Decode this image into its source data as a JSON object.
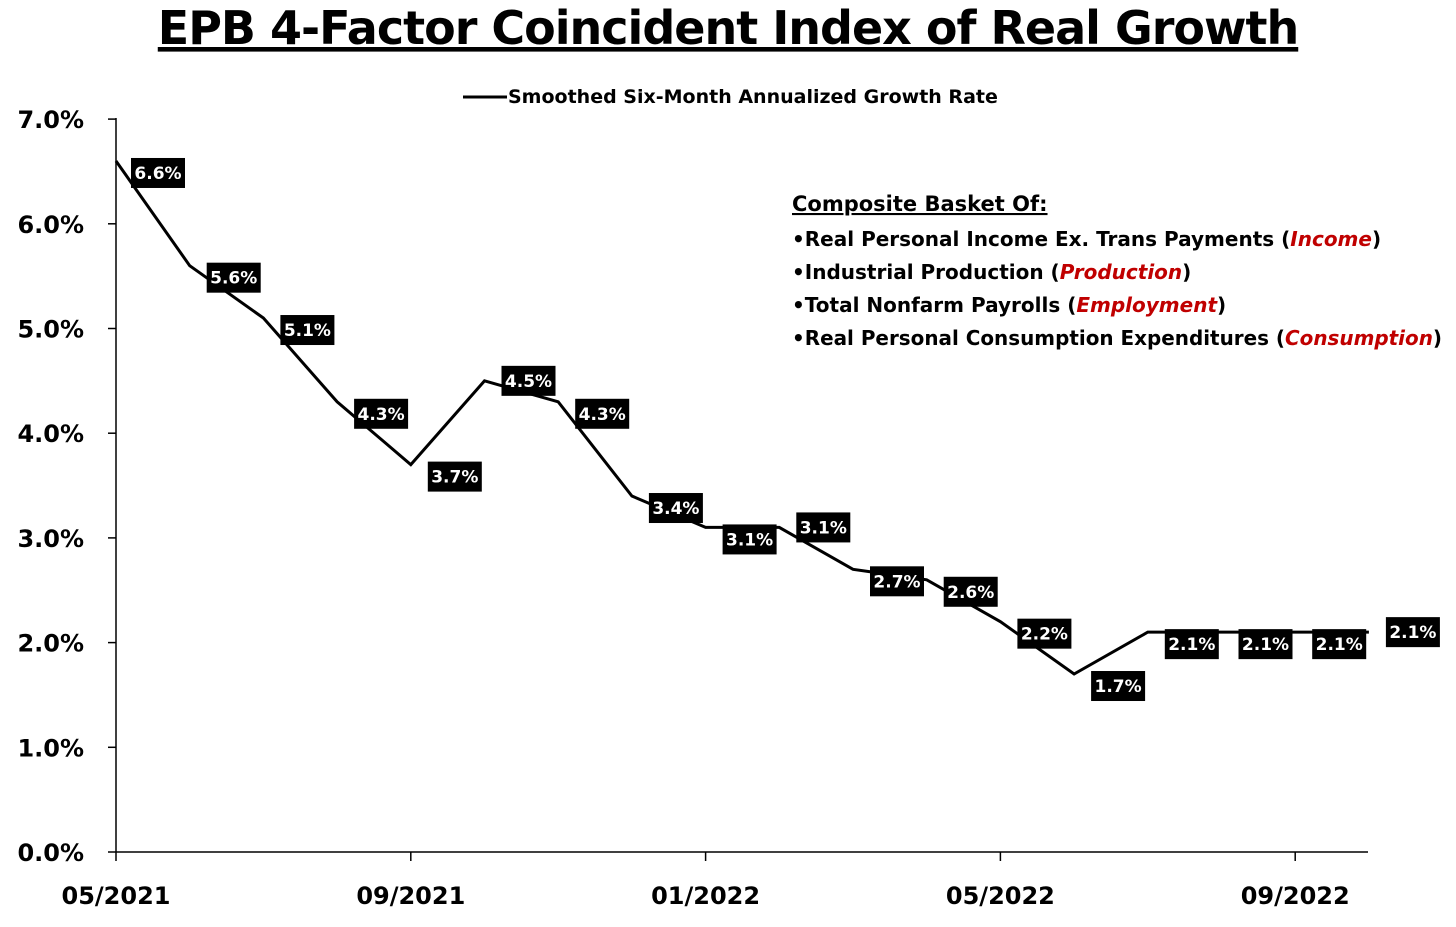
{
  "colors": {
    "line": "#000000",
    "label_bg": "#000000",
    "label_text": "#ffffff",
    "category": "#c00000"
  },
  "chart_data": {
    "type": "line",
    "title": "EPB 4-Factor Coincident Index of Real Growth",
    "legend": {
      "position": "top-center"
    },
    "ylim": [
      0,
      7
    ],
    "y_ticks": [
      "0.0%",
      "1.0%",
      "2.0%",
      "3.0%",
      "4.0%",
      "5.0%",
      "6.0%",
      "7.0%"
    ],
    "x_ticks": [
      "05/2021",
      "09/2021",
      "01/2022",
      "05/2022",
      "09/2022"
    ],
    "grid": false,
    "series": [
      {
        "name": "Smoothed Six-Month Annualized Growth Rate",
        "x": [
          "2021-05",
          "2021-06",
          "2021-07",
          "2021-08",
          "2021-09",
          "2021-10",
          "2021-11",
          "2021-12",
          "2022-01",
          "2022-02",
          "2022-03",
          "2022-04",
          "2022-05",
          "2022-06",
          "2022-07",
          "2022-08",
          "2022-09",
          "2022-10"
        ],
        "values": [
          6.6,
          5.6,
          5.1,
          4.3,
          3.7,
          4.5,
          4.3,
          3.4,
          3.1,
          3.1,
          2.7,
          2.6,
          2.2,
          1.7,
          2.1,
          2.1,
          2.1,
          2.1
        ],
        "labels": [
          "6.6%",
          "5.6%",
          "5.1%",
          "4.3%",
          "3.7%",
          "4.5%",
          "4.3%",
          "3.4%",
          "3.1%",
          "3.1%",
          "2.7%",
          "2.6%",
          "2.2%",
          "1.7%",
          "2.1%",
          "2.1%",
          "2.1%",
          "2.1%"
        ]
      }
    ],
    "annotation": {
      "heading": "Composite Basket Of:",
      "items": [
        {
          "text": "•Real Personal Income Ex. Trans Payments",
          "tag": "Income"
        },
        {
          "text": "•Industrial Production",
          "tag": "Production"
        },
        {
          "text": "•Total Nonfarm Payrolls",
          "tag": "Employment"
        },
        {
          "text": "•Real Personal Consumption Expenditures",
          "tag": "Consumption"
        }
      ]
    }
  }
}
